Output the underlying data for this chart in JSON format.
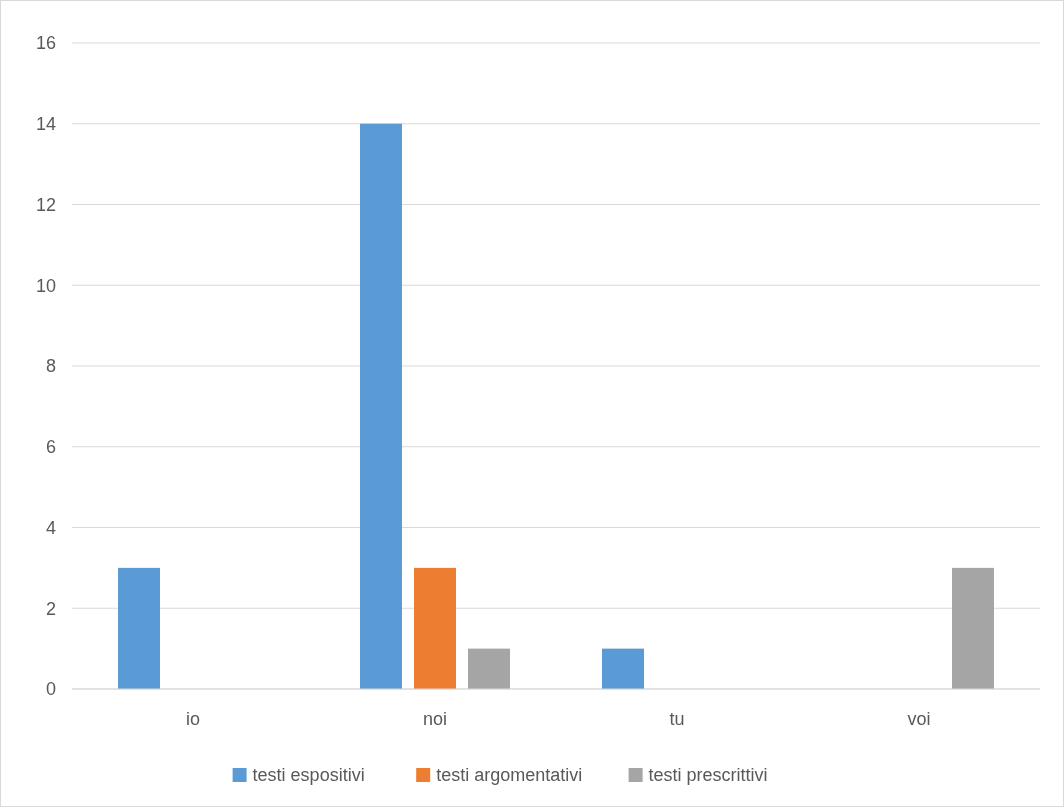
{
  "chart_data": {
    "type": "bar",
    "categories": [
      "io",
      "noi",
      "tu",
      "voi"
    ],
    "series": [
      {
        "name": "testi espositivi",
        "color": "#5b9bd5",
        "values": [
          3,
          14,
          1,
          0
        ]
      },
      {
        "name": "testi argomentativi",
        "color": "#ed7d31",
        "values": [
          0,
          3,
          0,
          0
        ]
      },
      {
        "name": "testi prescrittivi",
        "color": "#a5a5a5",
        "values": [
          0,
          1,
          0,
          3
        ]
      }
    ],
    "ylim": [
      0,
      16
    ],
    "yticks": [
      0,
      2,
      4,
      6,
      8,
      10,
      12,
      14,
      16
    ],
    "grid": "y",
    "legend": "bottom"
  }
}
